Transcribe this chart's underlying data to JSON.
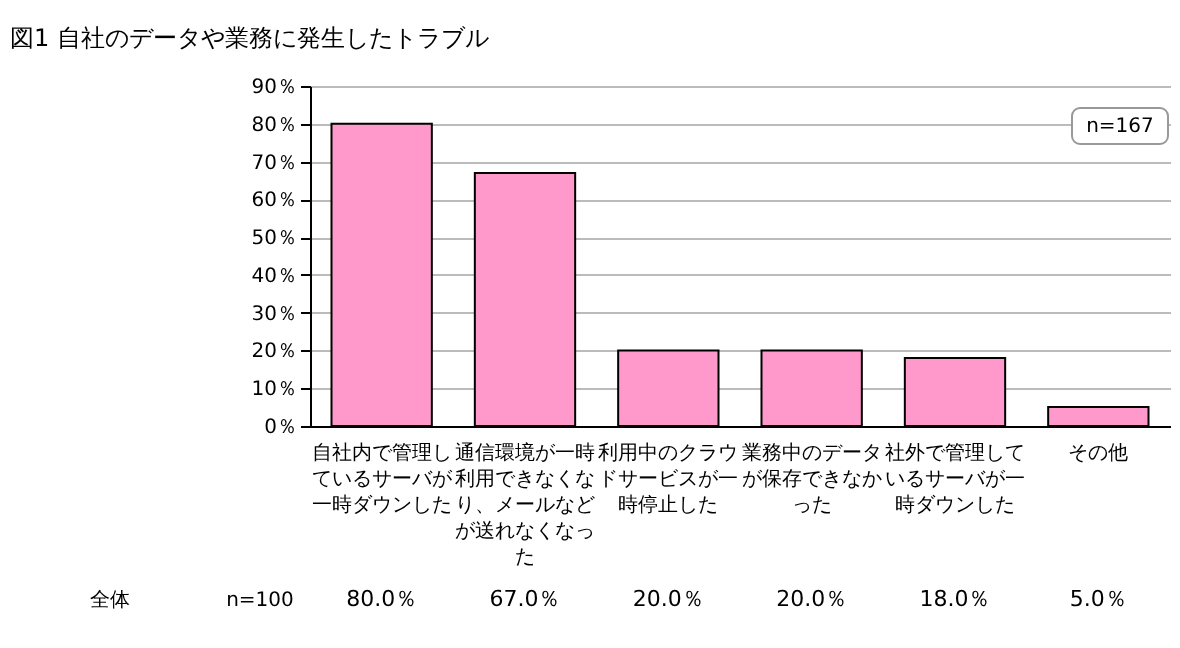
{
  "chart_data": {
    "type": "bar",
    "title": "図1 自社のデータや業務に発生したトラブル",
    "categories": [
      "自社内で管理しているサーバが一時ダウンした",
      "通信環境が一時利用できなくなり、メールなどが送れなくなった",
      "利用中のクラウドサービスが一時停止した",
      "業務中のデータが保存できなかった",
      "社外で管理しているサーバが一時ダウンした",
      "その他"
    ],
    "values": [
      80,
      67,
      20,
      20,
      18,
      5
    ],
    "value_labels": [
      "80.0％",
      "67.0％",
      "20.0％",
      "20.0％",
      "18.0％",
      "5.0％"
    ],
    "color": "#ff99cc",
    "ylim": [
      0,
      90
    ],
    "yticks": [
      {
        "value": 0,
        "label": "0％"
      },
      {
        "value": 10,
        "label": "10％"
      },
      {
        "value": 20,
        "label": "20％"
      },
      {
        "value": 30,
        "label": "30％"
      },
      {
        "value": 40,
        "label": "40％"
      },
      {
        "value": 50,
        "label": "50％"
      },
      {
        "value": 60,
        "label": "60％"
      },
      {
        "value": 70,
        "label": "70％"
      },
      {
        "value": 80,
        "label": "80％"
      },
      {
        "value": 90,
        "label": "90％"
      }
    ],
    "grid": "y",
    "annotations": [
      "n=167",
      "全体",
      "n=100"
    ]
  }
}
